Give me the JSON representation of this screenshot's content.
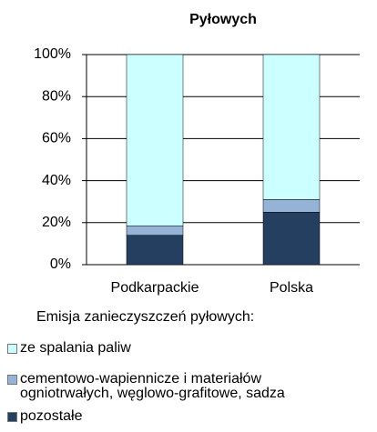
{
  "chart_data": {
    "type": "stacked_bar",
    "title": "Pyłowych",
    "categories": [
      "Podkarpackie",
      "Polska"
    ],
    "series": [
      {
        "name": "pozostałe",
        "color": "#243f60",
        "values": [
          14,
          25
        ]
      },
      {
        "name": "cementowo-wapiennicze i materiałów ogniotrwałych, węglowo-grafitowe, sadza",
        "color": "#95b3d7",
        "values": [
          4.5,
          6
        ]
      },
      {
        "name": "ze spalania paliw",
        "color": "#ccffff",
        "values": [
          81.5,
          69
        ]
      }
    ],
    "ylim": [
      0,
      100
    ],
    "yticks": [
      {
        "value": 0,
        "label": "0%"
      },
      {
        "value": 20,
        "label": "20%"
      },
      {
        "value": 40,
        "label": "40%"
      },
      {
        "value": 60,
        "label": "60%"
      },
      {
        "value": 80,
        "label": "80%"
      },
      {
        "value": 100,
        "label": "100%"
      }
    ],
    "grid": true,
    "legend_title": "Emisja zanieczyszczeń pyłowych:"
  }
}
